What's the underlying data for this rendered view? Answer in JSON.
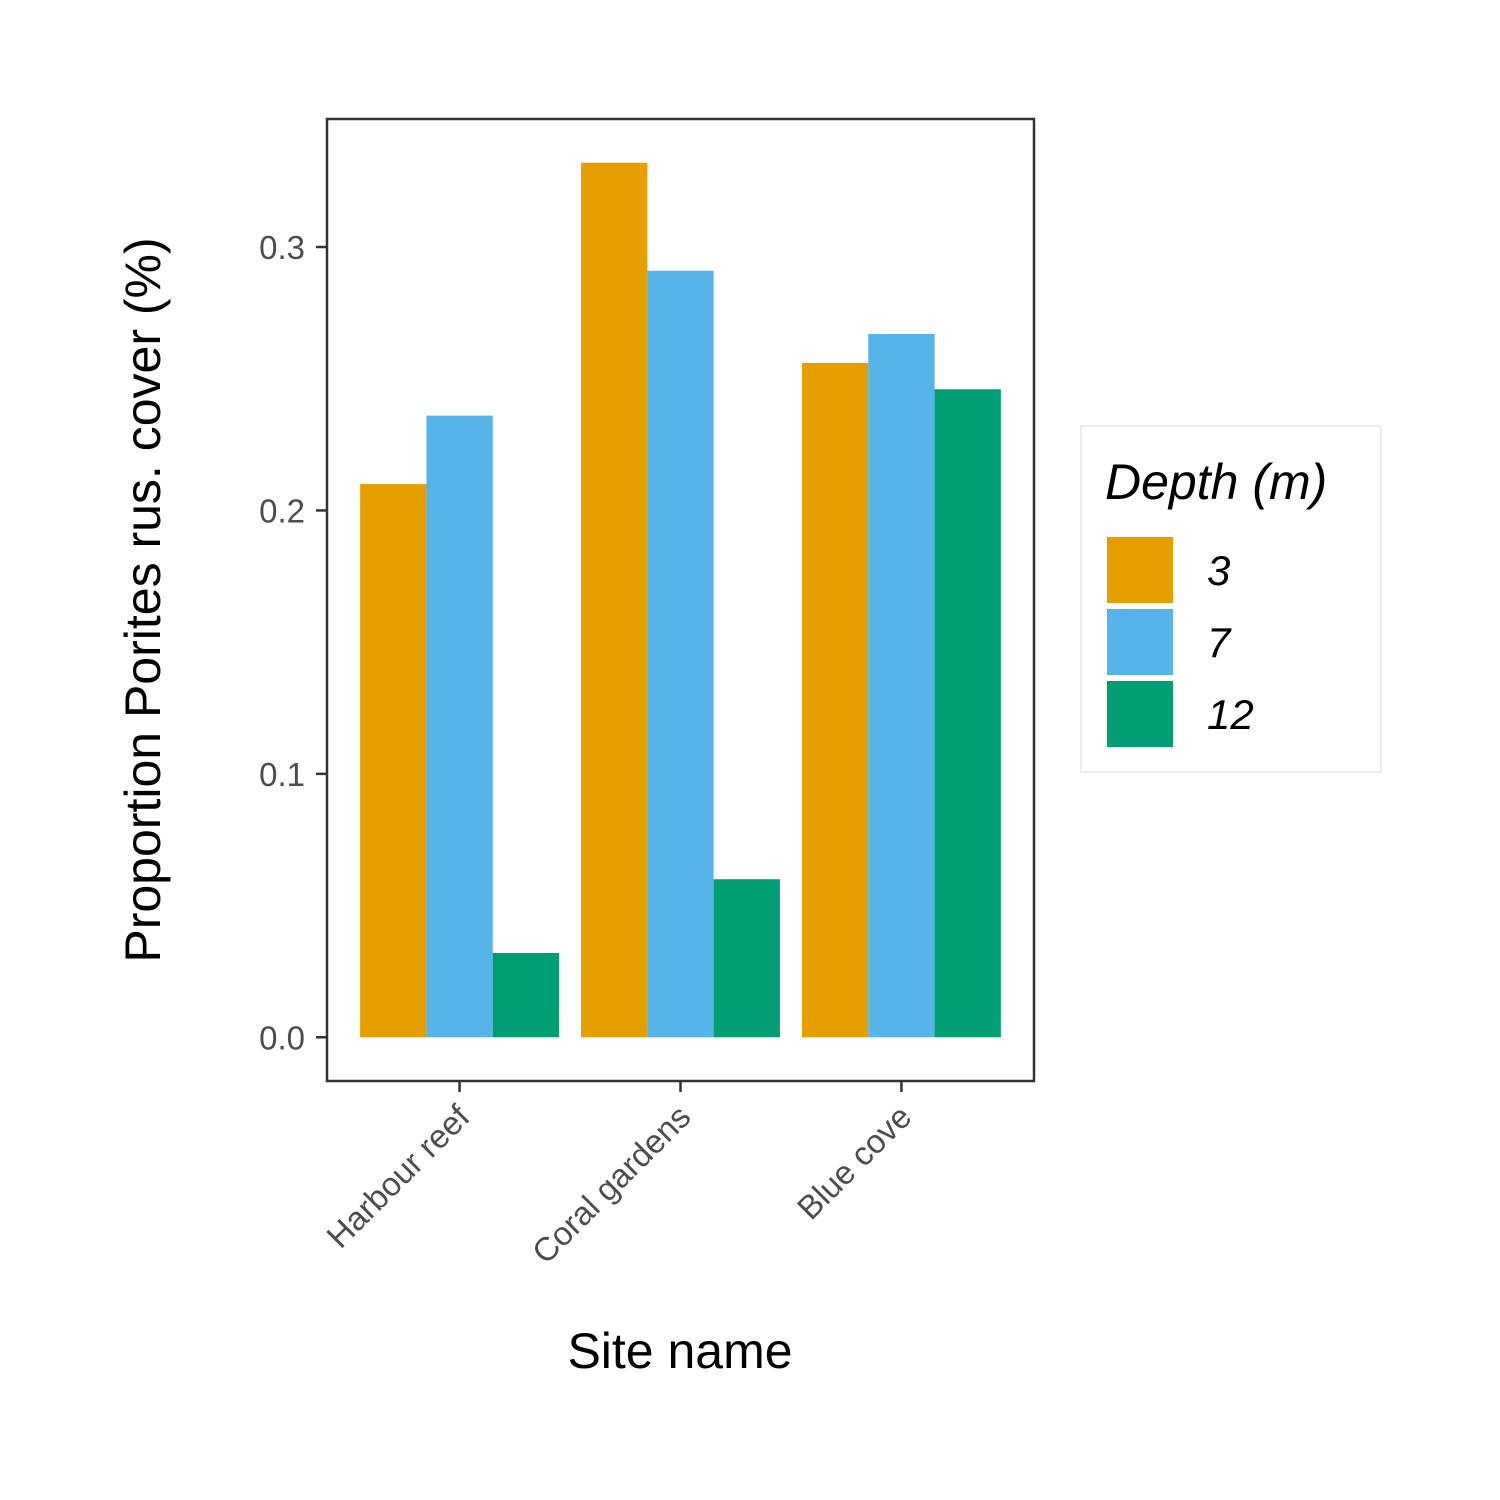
{
  "chart_data": {
    "type": "bar",
    "categories": [
      "Harbour reef",
      "Coral gardens",
      "Blue cove"
    ],
    "series": [
      {
        "name": "3",
        "values": [
          0.21,
          0.332,
          0.256
        ],
        "color": "#E69F00"
      },
      {
        "name": "7",
        "values": [
          0.236,
          0.291,
          0.267
        ],
        "color": "#56B4E9"
      },
      {
        "name": "12",
        "values": [
          0.032,
          0.06,
          0.246
        ],
        "color": "#009E73"
      }
    ],
    "title": "",
    "xlabel": "Site name",
    "ylabel": "Proportion Porites rus. cover (%)",
    "ylim": [
      -0.0166,
      0.3486
    ],
    "yticks": [
      0.0,
      0.1,
      0.2,
      0.3
    ],
    "ytick_labels": [
      "0.0",
      "0.1",
      "0.2",
      "0.3"
    ],
    "legend": {
      "title": "Depth (m)",
      "placement": "right"
    },
    "grid": false
  }
}
